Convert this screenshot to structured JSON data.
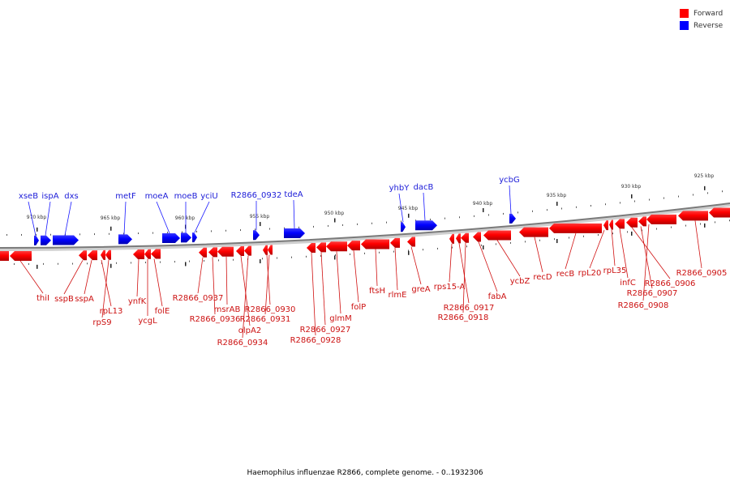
{
  "legend": {
    "forward_label": "Forward",
    "reverse_label": "Reverse",
    "forward_color": "#ff0000",
    "reverse_color": "#0000ff"
  },
  "caption": "Haemophilus influenzae R2866, complete genome. - 0..1932306",
  "ticks": [
    "970 kbp",
    "965 kbp",
    "960 kbp",
    "955 kbp",
    "950 kbp",
    "945 kbp",
    "940 kbp",
    "935 kbp",
    "930 kbp",
    "925 kbp"
  ],
  "reverse_genes": [
    "xseB",
    "ispA",
    "dxs",
    "metF",
    "moeA",
    "moeB",
    "yciU",
    "R2866_0932",
    "tdeA",
    "yhbY",
    "dacB",
    "ycbG"
  ],
  "forward_genes": [
    "thiI",
    "sspB",
    "sspA",
    "rpL13",
    "rpS9",
    "ynfK",
    "ycgL",
    "folE",
    "R2866_0937",
    "R2866_0936",
    "msrAB",
    "olpA2",
    "R2866_0934",
    "R2866_0930",
    "R2866_0931",
    "R2866_0928",
    "R2866_0927",
    "glmM",
    "folP",
    "ftsH",
    "rlmE",
    "greA",
    "rps15-A",
    "R2866_0917",
    "R2866_0918",
    "fabA",
    "ycbZ",
    "recD",
    "recB",
    "rpL20",
    "rpL35",
    "infC",
    "R2866_0906",
    "R2866_0907",
    "R2866_0908",
    "R2866_0905"
  ]
}
